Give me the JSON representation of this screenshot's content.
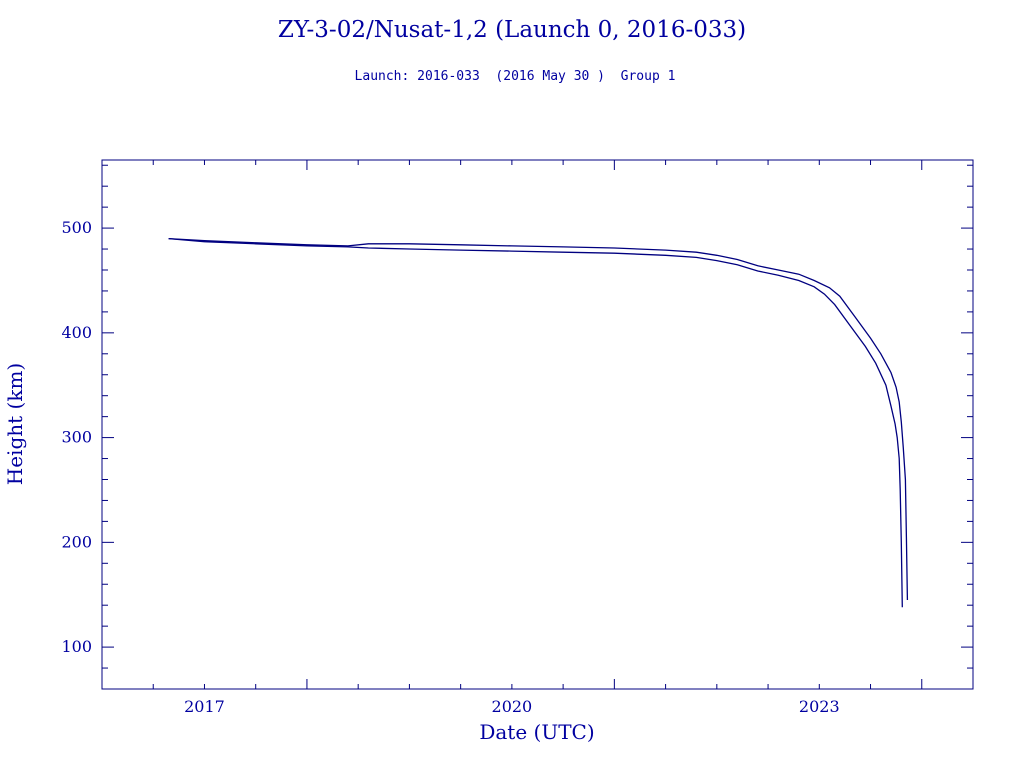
{
  "chart_data": {
    "type": "line",
    "title": "ZY-3-02/Nusat-1,2 (Launch 0, 2016-033)",
    "subtitle": "Launch: 2016-033  (2016 May 30 )  Group 1",
    "xlabel": "Date (UTC)",
    "ylabel": "Height (km)",
    "xlim": [
      2016.0,
      2024.5
    ],
    "ylim": [
      60,
      565
    ],
    "x_ticks": [
      {
        "value": 2017,
        "label": "2017"
      },
      {
        "value": 2020,
        "label": "2020"
      },
      {
        "value": 2023,
        "label": "2023"
      }
    ],
    "y_ticks": [
      {
        "value": 100,
        "label": "100"
      },
      {
        "value": 200,
        "label": "200"
      },
      {
        "value": 300,
        "label": "300"
      },
      {
        "value": 400,
        "label": "400"
      },
      {
        "value": 500,
        "label": "500"
      }
    ],
    "grid": false,
    "series": [
      {
        "x": [
          2016.65,
          2017.0,
          2017.5,
          2018.0,
          2018.4,
          2018.6,
          2019.0,
          2019.5,
          2020.0,
          2020.5,
          2021.0,
          2021.5,
          2021.8,
          2022.0,
          2022.2,
          2022.4,
          2022.6,
          2022.8,
          2022.95,
          2023.1,
          2023.2,
          2023.35,
          2023.5,
          2023.6,
          2023.7,
          2023.75,
          2023.78,
          2023.8,
          2023.82,
          2023.84,
          2023.85,
          2023.86
        ],
        "y": [
          490,
          488,
          486,
          484,
          483,
          485,
          485,
          484,
          483,
          482,
          481,
          479,
          477,
          474,
          470,
          464,
          460,
          456,
          450,
          443,
          435,
          415,
          395,
          380,
          362,
          348,
          334,
          315,
          290,
          260,
          205,
          145
        ]
      },
      {
        "x": [
          2016.65,
          2017.0,
          2017.5,
          2018.0,
          2018.4,
          2018.6,
          2019.0,
          2019.5,
          2020.0,
          2020.5,
          2021.0,
          2021.5,
          2021.8,
          2022.0,
          2022.2,
          2022.4,
          2022.6,
          2022.8,
          2022.95,
          2023.05,
          2023.15,
          2023.3,
          2023.45,
          2023.55,
          2023.65,
          2023.7,
          2023.74,
          2023.76,
          2023.78,
          2023.79,
          2023.8,
          2023.81
        ],
        "y": [
          490,
          487,
          485,
          483,
          482,
          481,
          480,
          479,
          478,
          477,
          476,
          474,
          472,
          469,
          465,
          459,
          455,
          450,
          444,
          437,
          427,
          407,
          387,
          371,
          350,
          330,
          313,
          300,
          280,
          250,
          200,
          138
        ]
      }
    ]
  }
}
